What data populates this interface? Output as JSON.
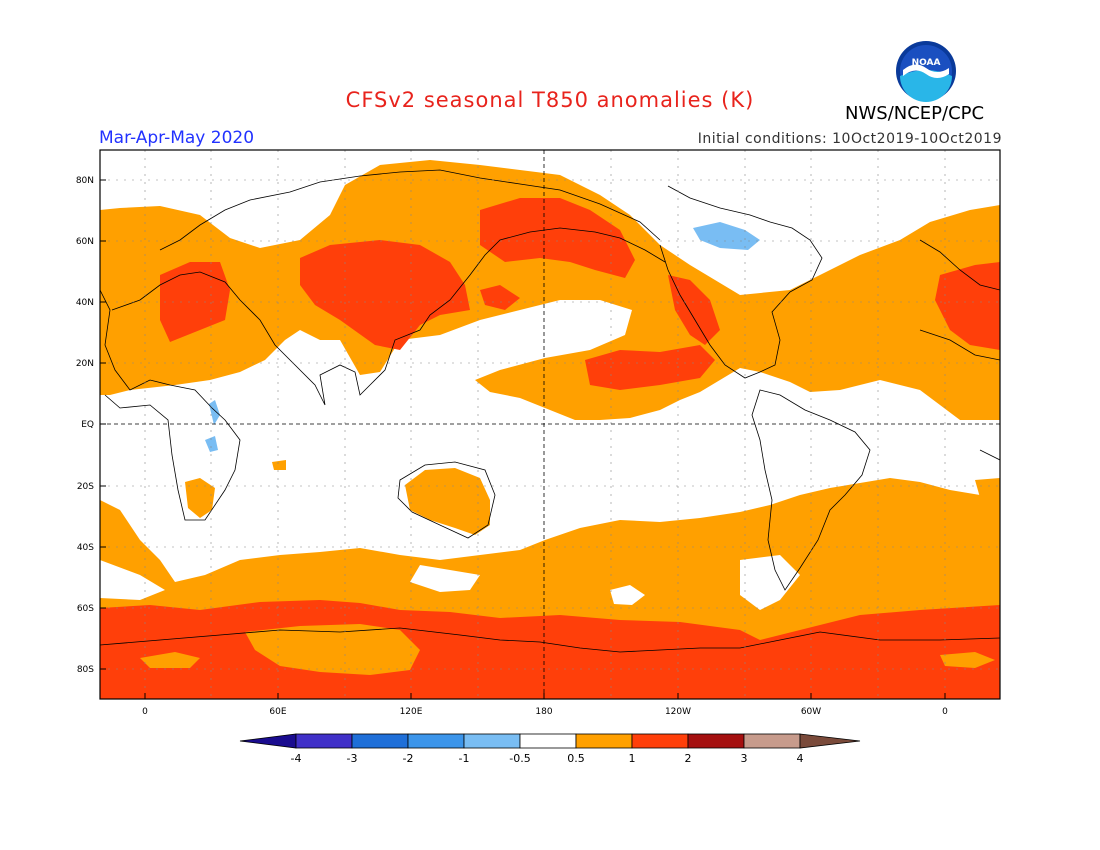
{
  "header": {
    "title": "CFSv2 seasonal T850 anomalies (K)",
    "season": "Mar-Apr-May 2020",
    "initial_conditions": "Initial conditions: 10Oct2019-10Oct2019",
    "agency": "NWS/NCEP/CPC",
    "logo_text": "NOAA"
  },
  "axes": {
    "lat_labels": [
      "80N",
      "60N",
      "40N",
      "20N",
      "EQ",
      "20S",
      "40S",
      "60S",
      "80S"
    ],
    "lon_labels": [
      "0",
      "60E",
      "120E",
      "180",
      "120W",
      "60W",
      "0"
    ]
  },
  "colorbar": {
    "labels": [
      "-4",
      "-3",
      "-2",
      "-1",
      "-0.5",
      "0.5",
      "1",
      "2",
      "3",
      "4"
    ],
    "colors": [
      "#1a0c8f",
      "#4030c8",
      "#1f6fd8",
      "#3c95ea",
      "#79bdf3",
      "#ffffff",
      "#ffa000",
      "#ff3f0a",
      "#a51010",
      "#c79b8c",
      "#7a4a3a"
    ]
  },
  "colors": {
    "orange": "#ffa000",
    "red": "#ff3f0a",
    "light_blue": "#79bdf3",
    "title": "#e8231c",
    "season": "#2232ff"
  }
}
